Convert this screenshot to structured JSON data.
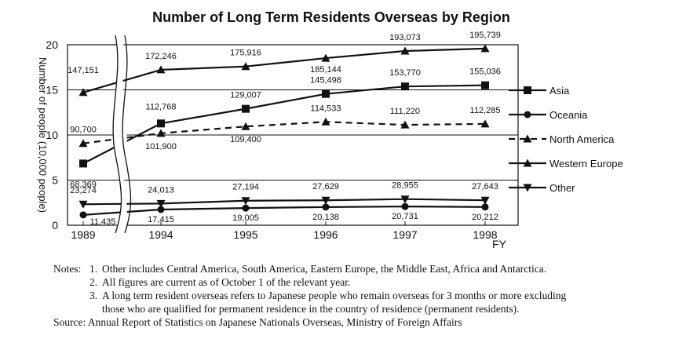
{
  "chart_data": {
    "type": "line",
    "title": "Number of Long Term Residents Overseas by Region",
    "ylabel": "Number of people (10,000 people)",
    "xlabel": "FY",
    "categories": [
      "1989",
      "1994",
      "1995",
      "1996",
      "1997",
      "1998"
    ],
    "ylim": [
      0,
      20
    ],
    "yticks": [
      "0",
      "5",
      "10",
      "15",
      "20"
    ],
    "grid": "horizontal lines at 5, 10, 15",
    "legend_position": "right",
    "series": [
      {
        "name": "Asia",
        "marker": "square",
        "dash": "solid",
        "values": [
          6.8369,
          11.2768,
          12.9007,
          14.5498,
          15.377,
          15.5036
        ],
        "labels": [
          "68,369",
          "112,768",
          "129,007",
          "145,498",
          "153,770",
          "155,036"
        ]
      },
      {
        "name": "Oceania",
        "marker": "circle",
        "dash": "solid",
        "values": [
          1.1435,
          1.7415,
          1.9005,
          2.0138,
          2.0731,
          2.0212
        ],
        "labels": [
          "11,435",
          "17,415",
          "19,005",
          "20,138",
          "20,731",
          "20,212"
        ]
      },
      {
        "name": "North America",
        "marker": "triangle-up",
        "dash": "dashed",
        "values": [
          9.07,
          10.19,
          10.94,
          11.4533,
          11.122,
          11.2285
        ],
        "labels": [
          "90,700",
          "101,900",
          "109,400",
          "114,533",
          "111,220",
          "112,285"
        ]
      },
      {
        "name": "Western Europe",
        "marker": "triangle-up",
        "dash": "solid",
        "values": [
          14.7151,
          17.2246,
          17.5916,
          18.5144,
          19.3073,
          19.5739
        ],
        "labels": [
          "147,151",
          "172,246",
          "175,916",
          "185,144",
          "193,073",
          "195,739"
        ]
      },
      {
        "name": "Other",
        "marker": "triangle-down",
        "dash": "solid",
        "values": [
          2.3274,
          2.4013,
          2.7194,
          2.7629,
          2.8955,
          2.7643
        ],
        "labels": [
          "23,274",
          "24,013",
          "27,194",
          "27,629",
          "28,955",
          "27,643"
        ]
      }
    ]
  },
  "notes": {
    "lead": "Notes:",
    "items": [
      {
        "num": "1.",
        "text": "Other includes Central America, South America, Eastern Europe, the Middle East, Africa and Antarctica."
      },
      {
        "num": "2.",
        "text": "All figures are current as of October 1 of the relevant year."
      },
      {
        "num": "3.",
        "text": "A long term resident overseas refers to Japanese people who remain overseas for 3 months or more excluding"
      }
    ],
    "continuation": "those who are qualified for permanent residence in the country of residence (permanent residents).",
    "source": "Source:  Annual Report of Statistics on Japanese Nationals Overseas, Ministry of Foreign Affairs"
  }
}
